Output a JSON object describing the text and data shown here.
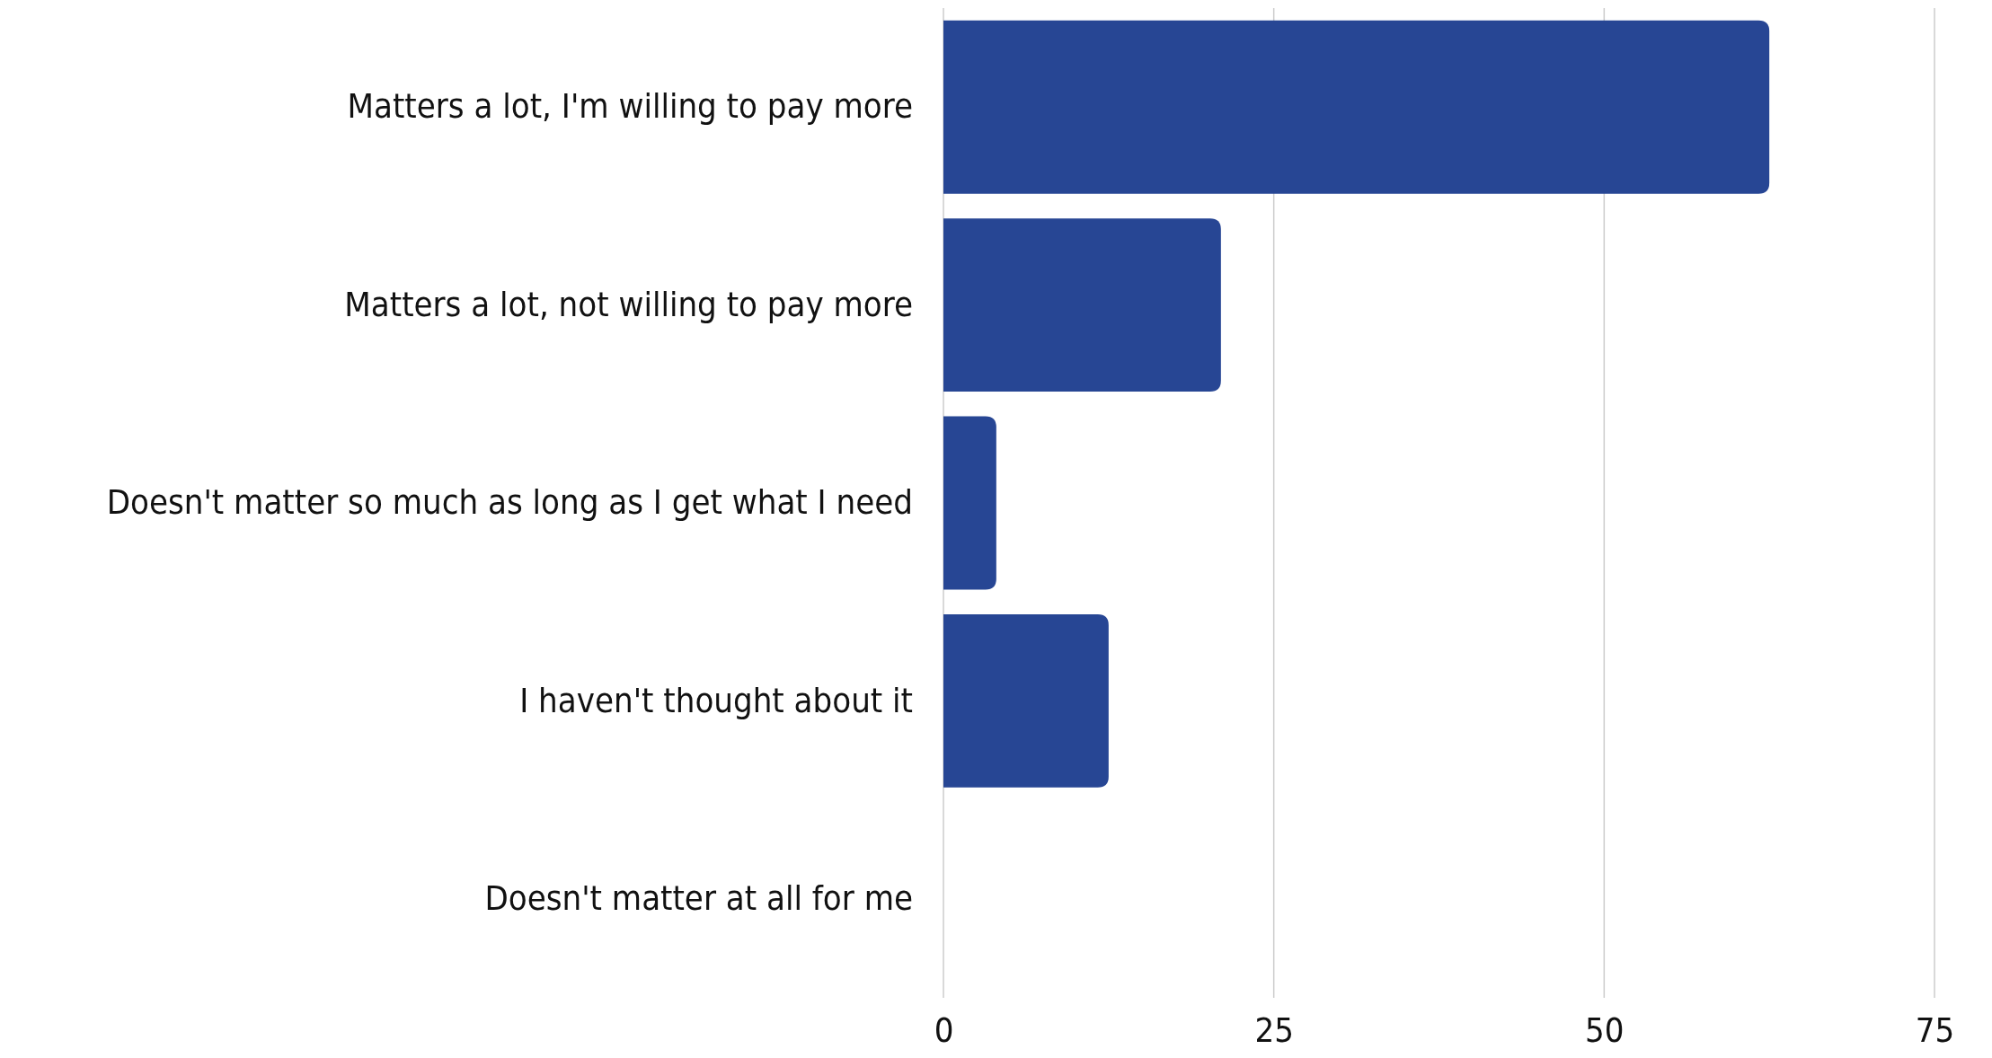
{
  "chart_data": {
    "type": "bar",
    "orientation": "horizontal",
    "categories": [
      "Matters a lot, I'm willing to pay more",
      "Matters a lot, not willing to pay more",
      "Doesn't matter so much as long as I get what I need",
      "I haven't thought about it",
      "Doesn't matter at all for me"
    ],
    "values": [
      62.5,
      21,
      4,
      12.5,
      0
    ],
    "color": "#274694",
    "xlim": [
      0,
      75
    ],
    "xticks": [
      0,
      25,
      50,
      75
    ],
    "grid": "x"
  }
}
